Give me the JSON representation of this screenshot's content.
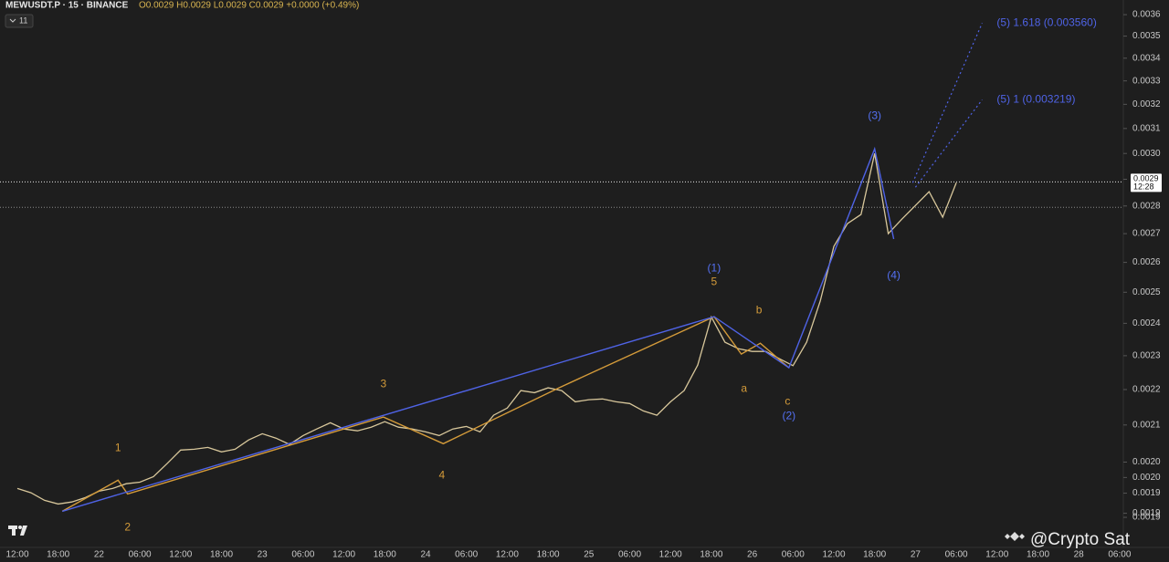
{
  "header": {
    "symbol": "MEWUSDT.P · 15 · BINANCE",
    "ohlc": "O0.0029 H0.0029 L0.0029 C0.0029 +0.0000 (+0.49%)",
    "badge": "11"
  },
  "watermark": "@Crypto Sat",
  "chart_data": {
    "type": "line",
    "log_scale": true,
    "categories": [
      "12:00",
      null,
      null,
      "18:00",
      null,
      null,
      "22",
      null,
      null,
      "06:00",
      null,
      null,
      "12:00",
      null,
      null,
      "18:00",
      null,
      null,
      "23",
      null,
      null,
      "06:00",
      null,
      null,
      "12:00",
      null,
      null,
      "18:00",
      null,
      null,
      "24",
      null,
      null,
      "06:00",
      null,
      null,
      "12:00",
      null,
      null,
      "18:00",
      null,
      null,
      "25",
      null,
      null,
      "06:00",
      null,
      null,
      "12:00",
      null,
      null,
      "18:00",
      null,
      null,
      "26",
      null,
      null,
      "06:00",
      null,
      null,
      "12:00",
      null,
      null,
      "18:00",
      null,
      null,
      "27",
      null,
      null,
      "06:00",
      null,
      null,
      "12:00",
      null,
      null,
      "18:00",
      null,
      null,
      "28",
      null,
      null,
      "06:00"
    ],
    "series": [
      {
        "color": "#d8c79b",
        "values": [
          0.001932,
          0.001921,
          0.001902,
          0.001893,
          0.001898,
          0.001909,
          0.001925,
          0.001932,
          0.001944,
          0.001948,
          0.001962,
          0.001996,
          0.002032,
          0.002034,
          0.002039,
          0.002027,
          0.002034,
          0.002059,
          0.002076,
          0.002064,
          0.002047,
          0.002071,
          0.002089,
          0.002106,
          0.002089,
          0.002084,
          0.002094,
          0.002109,
          0.002094,
          0.002089,
          0.002081,
          0.002071,
          0.002089,
          0.002096,
          0.002081,
          0.002127,
          0.002147,
          0.002197,
          0.002191,
          0.002205,
          0.002197,
          0.002165,
          0.002171,
          0.002173,
          0.002165,
          0.00216,
          0.002139,
          0.002127,
          0.002165,
          0.002197,
          0.002272,
          0.00242,
          0.002341,
          0.002321,
          0.002313,
          0.002313,
          0.002291,
          0.00227,
          0.002341,
          0.002471,
          0.002655,
          0.002736,
          0.002769,
          0.003,
          0.0027,
          0.002752,
          0.002802,
          0.002853,
          0.002759,
          0.002887,
          null,
          null,
          null,
          null,
          null,
          null,
          null,
          null,
          null,
          null,
          null,
          null
        ]
      }
    ],
    "ylim": [
      0.001788,
      0.00367
    ],
    "yticks": [
      {
        "value": 0.0036,
        "label": "0.0036"
      },
      {
        "value": 0.0035,
        "label": "0.0035"
      },
      {
        "value": 0.0034,
        "label": "0.0034"
      },
      {
        "value": 0.0033,
        "label": "0.0033"
      },
      {
        "value": 0.0032,
        "label": "0.0032"
      },
      {
        "value": 0.0031,
        "label": "0.0031"
      },
      {
        "value": 0.003,
        "label": "0.0030"
      },
      {
        "value": 0.0029,
        "label": "0.0029"
      },
      {
        "value": 0.0028,
        "label": "0.0028"
      },
      {
        "value": 0.0027,
        "label": "0.0027"
      },
      {
        "value": 0.0026,
        "label": "0.0026"
      },
      {
        "value": 0.0025,
        "label": "0.0025"
      },
      {
        "value": 0.0024,
        "label": "0.0024"
      },
      {
        "value": 0.0023,
        "label": "0.0023"
      },
      {
        "value": 0.0022,
        "label": "0.0022"
      },
      {
        "value": 0.0021,
        "label": "0.0021"
      },
      {
        "value": 0.002,
        "label": "0.0020"
      },
      {
        "value": 0.00196,
        "label": "0.0020"
      },
      {
        "value": 0.00192,
        "label": "0.0019"
      },
      {
        "value": 0.00187,
        "label": "0.0019"
      },
      {
        "value": 0.00186,
        "label": "0.0019"
      }
    ],
    "last_price": {
      "value": 0.00289,
      "label": "0.0029"
    },
    "countdown": "12:28",
    "reference_price": 0.002795,
    "waves": [
      {
        "color": "#d49b3a",
        "dotted": false,
        "x": [
          3.3,
          7.4,
          8.1,
          26.9,
          31.3,
          39.8,
          51.2,
          53.2,
          54.6,
          56.7
        ],
        "values": [
          0.001875,
          0.001953,
          0.001918,
          0.002122,
          0.002049,
          0.002205,
          0.002421,
          0.002305,
          0.002338,
          0.002264
        ]
      },
      {
        "color": "#4f63e6",
        "dotted": false,
        "x": [
          3.3,
          51.2,
          56.7,
          63.0,
          64.4
        ],
        "values": [
          0.001875,
          0.002421,
          0.002264,
          0.003018,
          0.002681
        ]
      },
      {
        "color": "#4f63e6",
        "dotted": true,
        "x": [
          65.8,
          70.9
        ],
        "values": [
          0.002887,
          0.00356
        ]
      },
      {
        "color": "#4f63e6",
        "dotted": true,
        "x": [
          66.0,
          70.9
        ],
        "values": [
          0.00287,
          0.003219
        ]
      }
    ],
    "annotations": [
      {
        "text": "(1)",
        "x": 51.2,
        "y": 0.002579,
        "color": "#5470f2"
      },
      {
        "text": "(2)",
        "x": 56.7,
        "y": 0.002124,
        "color": "#5470f2"
      },
      {
        "text": "(3)",
        "x": 63.0,
        "y": 0.003151,
        "color": "#5470f2"
      },
      {
        "text": "(4)",
        "x": 64.4,
        "y": 0.002555,
        "color": "#5470f2"
      },
      {
        "text": "5",
        "x": 51.2,
        "y": 0.002533,
        "color": "#d49b3a"
      },
      {
        "text": "b",
        "x": 54.5,
        "y": 0.002441,
        "color": "#d49b3a"
      },
      {
        "text": "a",
        "x": 53.4,
        "y": 0.002202,
        "color": "#d49b3a"
      },
      {
        "text": "c",
        "x": 56.6,
        "y": 0.002165,
        "color": "#d49b3a"
      },
      {
        "text": "1",
        "x": 7.4,
        "y": 0.002037,
        "color": "#d49b3a"
      },
      {
        "text": "2",
        "x": 8.1,
        "y": 0.001835,
        "color": "#d49b3a"
      },
      {
        "text": "3",
        "x": 26.9,
        "y": 0.002215,
        "color": "#d49b3a"
      },
      {
        "text": "4",
        "x": 31.2,
        "y": 0.001965,
        "color": "#d49b3a"
      }
    ],
    "targets": [
      "(5) 1.618 (0.003560)",
      "(5) 1 (0.003219)"
    ]
  }
}
